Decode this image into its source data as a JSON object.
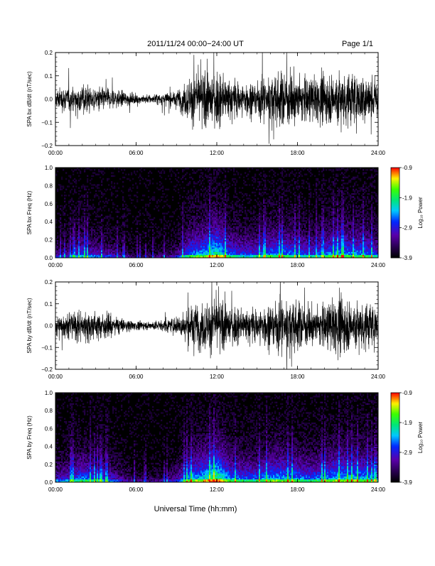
{
  "header": {
    "title": "2011/11/24  00:00−24:00 UT",
    "page": "Page 1/1"
  },
  "x_axis_label": "Universal Time (hh:mm)",
  "x_ticks": [
    "00:00",
    "06:00",
    "12:00",
    "18:00",
    "24:00"
  ],
  "colorbar": {
    "label": "Log₁₀ Power",
    "ticks": [
      "-0.9",
      "-1.9",
      "-2.9",
      "-3.9"
    ],
    "range": [
      -3.9,
      -0.9
    ]
  },
  "chart_data": [
    {
      "type": "line",
      "ylabel": "SPA bx dB/dt (nT/sec)",
      "xlim": [
        0,
        24
      ],
      "ylim": [
        -0.2,
        0.2
      ],
      "y_ticks": [
        "0.2",
        "0.1",
        "0.0",
        "−0.1",
        "−0.2"
      ],
      "x_hours": [
        0,
        1,
        2,
        3,
        4,
        5,
        6,
        7,
        8,
        9,
        10,
        11,
        12,
        13,
        14,
        15,
        16,
        17,
        18,
        19,
        20,
        21,
        22,
        23,
        24
      ],
      "amplitude_envelope": [
        0.07,
        0.08,
        0.1,
        0.08,
        0.07,
        0.05,
        0.03,
        0.03,
        0.04,
        0.05,
        0.15,
        0.17,
        0.18,
        0.13,
        0.11,
        0.12,
        0.16,
        0.18,
        0.16,
        0.14,
        0.15,
        0.19,
        0.17,
        0.17,
        0.13
      ],
      "series": [
        {
          "values_note": "black dB/dt trace"
        }
      ]
    },
    {
      "type": "heatmap",
      "ylabel": "SPA bx Freq (Hz)",
      "xlim": [
        0,
        24
      ],
      "ylim": [
        0.0,
        1.0
      ],
      "y_ticks": [
        "1.0",
        "0.8",
        "0.6",
        "0.4",
        "0.2",
        "0.0"
      ],
      "x_hours": [
        0,
        1,
        2,
        3,
        4,
        5,
        6,
        7,
        8,
        9,
        10,
        11,
        12,
        13,
        14,
        15,
        16,
        17,
        18,
        19,
        20,
        21,
        22,
        23,
        24
      ],
      "activity": [
        0.25,
        0.3,
        0.45,
        0.35,
        0.3,
        0.2,
        0.12,
        0.12,
        0.15,
        0.25,
        0.55,
        0.6,
        0.75,
        0.5,
        0.45,
        0.45,
        0.55,
        0.55,
        0.5,
        0.45,
        0.5,
        0.6,
        0.55,
        0.55,
        0.45
      ],
      "power_range": [
        -3.9,
        -0.9
      ]
    },
    {
      "type": "line",
      "ylabel": "SPA by dB/dt (nT/sec)",
      "xlim": [
        0,
        24
      ],
      "ylim": [
        -0.2,
        0.2
      ],
      "y_ticks": [
        "0.2",
        "0.1",
        "0.0",
        "−0.1",
        "−0.2"
      ],
      "x_hours": [
        0,
        1,
        2,
        3,
        4,
        5,
        6,
        7,
        8,
        9,
        10,
        11,
        12,
        13,
        14,
        15,
        16,
        17,
        18,
        19,
        20,
        21,
        22,
        23,
        24
      ],
      "amplitude_envelope": [
        0.08,
        0.09,
        0.11,
        0.09,
        0.08,
        0.05,
        0.03,
        0.03,
        0.04,
        0.06,
        0.14,
        0.17,
        0.18,
        0.14,
        0.11,
        0.12,
        0.16,
        0.19,
        0.17,
        0.13,
        0.15,
        0.19,
        0.18,
        0.17,
        0.13
      ],
      "series": [
        {
          "values_note": "black dB/dt trace"
        }
      ]
    },
    {
      "type": "heatmap",
      "ylabel": "SPA by Freq (Hz)",
      "xlim": [
        0,
        24
      ],
      "ylim": [
        0.0,
        1.0
      ],
      "y_ticks": [
        "1.0",
        "0.8",
        "0.6",
        "0.4",
        "0.2",
        "0.0"
      ],
      "x_hours": [
        0,
        1,
        2,
        3,
        4,
        5,
        6,
        7,
        8,
        9,
        10,
        11,
        12,
        13,
        14,
        15,
        16,
        17,
        18,
        19,
        20,
        21,
        22,
        23,
        24
      ],
      "activity": [
        0.35,
        0.4,
        0.55,
        0.45,
        0.4,
        0.25,
        0.15,
        0.15,
        0.18,
        0.3,
        0.6,
        0.65,
        0.8,
        0.55,
        0.5,
        0.5,
        0.6,
        0.6,
        0.55,
        0.5,
        0.55,
        0.65,
        0.6,
        0.6,
        0.5
      ],
      "power_range": [
        -3.9,
        -0.9
      ]
    }
  ]
}
